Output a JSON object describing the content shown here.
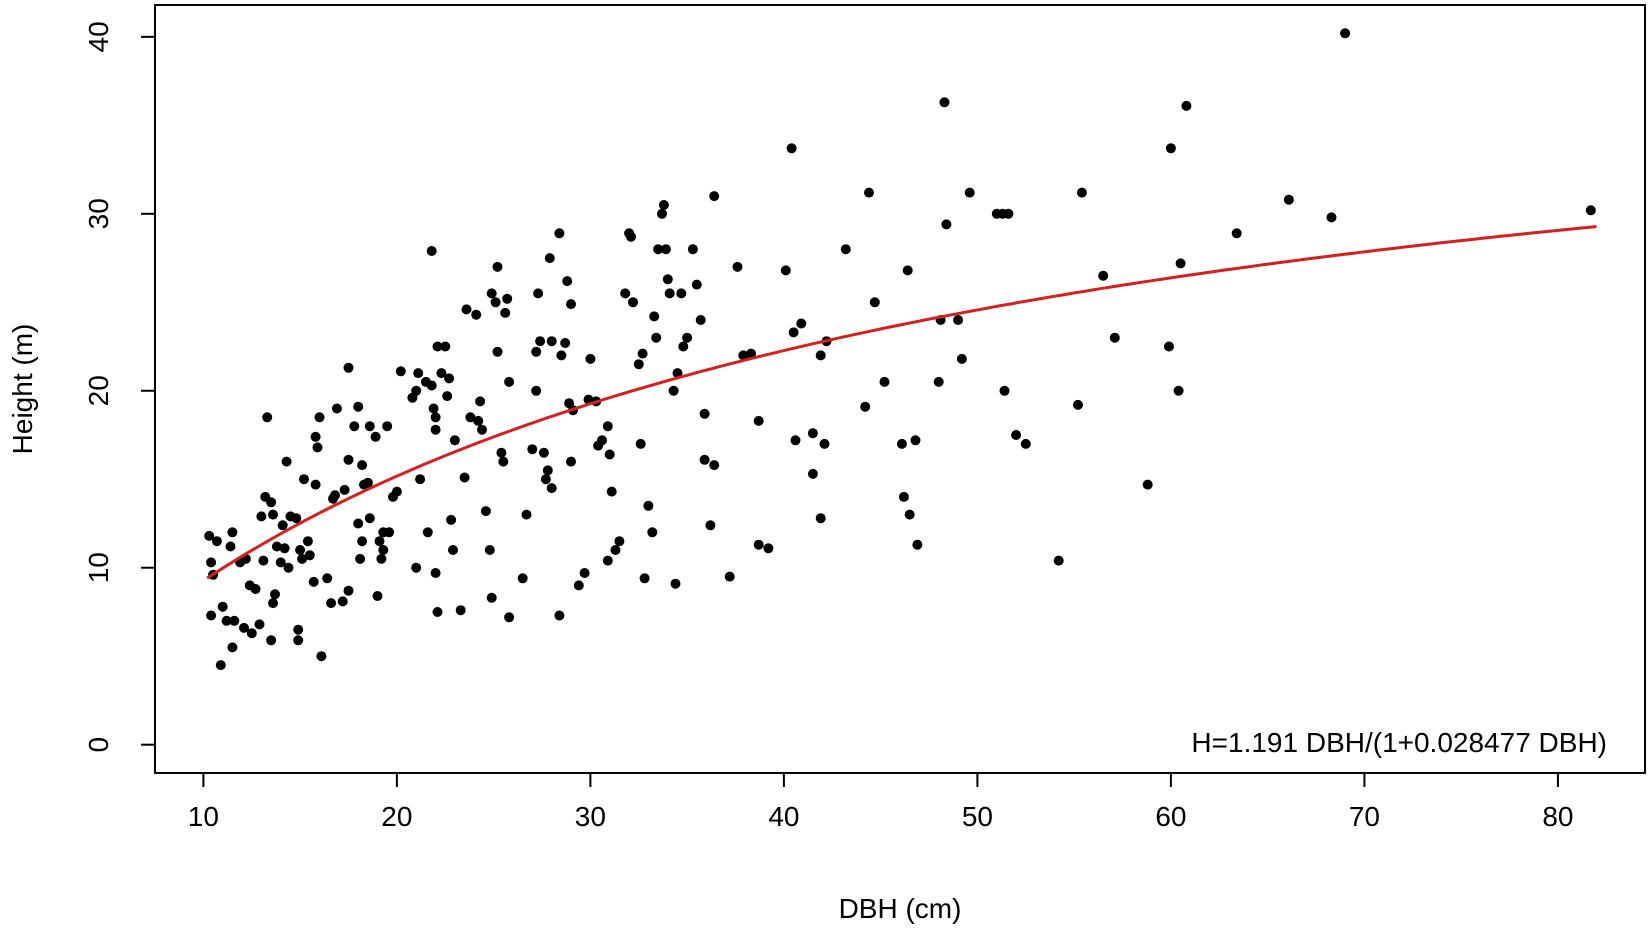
{
  "chart_data": {
    "type": "scatter",
    "title": "",
    "xlabel": "DBH (cm)",
    "ylabel": "Height (m)",
    "xlim": [
      7.5,
      84.5
    ],
    "ylim": [
      -1.6,
      41.8
    ],
    "xticks": [
      10,
      20,
      30,
      40,
      50,
      60,
      70,
      80
    ],
    "yticks": [
      0,
      10,
      20,
      30,
      40
    ],
    "grid": false,
    "annotation": "H=1.191 DBH/(1+0.028477 DBH)",
    "point_color": "#000000",
    "fit": {
      "formula": "H = a*DBH/(1+b*DBH)",
      "a": 1.191,
      "b": 0.028477,
      "x_range": [
        10.2,
        82.0
      ],
      "color": "#d61f1f"
    },
    "points": [
      [
        10.3,
        11.8
      ],
      [
        10.4,
        10.3
      ],
      [
        10.5,
        9.6
      ],
      [
        10.7,
        11.5
      ],
      [
        10.4,
        7.3
      ],
      [
        11.0,
        7.8
      ],
      [
        10.9,
        4.5
      ],
      [
        11.2,
        7.0
      ],
      [
        11.5,
        5.5
      ],
      [
        11.6,
        7.0
      ],
      [
        11.4,
        11.2
      ],
      [
        11.5,
        12.0
      ],
      [
        11.9,
        10.3
      ],
      [
        12.2,
        10.5
      ],
      [
        12.4,
        9.0
      ],
      [
        12.7,
        8.8
      ],
      [
        12.1,
        6.6
      ],
      [
        12.5,
        6.3
      ],
      [
        12.9,
        6.8
      ],
      [
        13.1,
        10.4
      ],
      [
        13.0,
        12.9
      ],
      [
        13.2,
        14.0
      ],
      [
        13.5,
        13.7
      ],
      [
        13.6,
        13.0
      ],
      [
        13.3,
        18.5
      ],
      [
        13.8,
        11.2
      ],
      [
        13.7,
        8.5
      ],
      [
        13.6,
        8.0
      ],
      [
        13.5,
        5.9
      ],
      [
        14.0,
        10.3
      ],
      [
        14.2,
        11.1
      ],
      [
        14.4,
        10.0
      ],
      [
        14.1,
        12.4
      ],
      [
        14.5,
        12.9
      ],
      [
        14.3,
        16.0
      ],
      [
        14.8,
        12.8
      ],
      [
        15.0,
        11.0
      ],
      [
        15.1,
        10.5
      ],
      [
        15.2,
        15.0
      ],
      [
        15.4,
        11.5
      ],
      [
        15.5,
        10.7
      ],
      [
        15.7,
        9.2
      ],
      [
        14.9,
        6.5
      ],
      [
        14.9,
        5.9
      ],
      [
        15.8,
        14.7
      ],
      [
        15.9,
        16.8
      ],
      [
        15.8,
        17.4
      ],
      [
        16.0,
        18.5
      ],
      [
        16.1,
        5.0
      ],
      [
        16.4,
        9.4
      ],
      [
        16.6,
        8.0
      ],
      [
        16.7,
        13.9
      ],
      [
        16.8,
        14.1
      ],
      [
        16.9,
        19.0
      ],
      [
        17.2,
        8.1
      ],
      [
        17.5,
        8.7
      ],
      [
        17.3,
        14.4
      ],
      [
        17.5,
        16.1
      ],
      [
        17.5,
        21.3
      ],
      [
        17.8,
        18.0
      ],
      [
        18.0,
        19.1
      ],
      [
        18.2,
        15.8
      ],
      [
        18.0,
        12.5
      ],
      [
        18.2,
        11.5
      ],
      [
        18.1,
        10.5
      ],
      [
        18.3,
        14.7
      ],
      [
        18.5,
        14.8
      ],
      [
        18.6,
        12.8
      ],
      [
        18.6,
        18.0
      ],
      [
        18.9,
        17.4
      ],
      [
        19.0,
        8.4
      ],
      [
        19.2,
        10.5
      ],
      [
        19.1,
        11.5
      ],
      [
        19.3,
        12.0
      ],
      [
        19.3,
        11.0
      ],
      [
        19.5,
        18.0
      ],
      [
        19.6,
        12.0
      ],
      [
        19.8,
        14.0
      ],
      [
        20.0,
        14.3
      ],
      [
        20.2,
        21.1
      ],
      [
        20.8,
        19.6
      ],
      [
        21.0,
        20.0
      ],
      [
        21.1,
        21.0
      ],
      [
        21.0,
        10.0
      ],
      [
        21.2,
        15.0
      ],
      [
        21.5,
        20.5
      ],
      [
        21.6,
        12.0
      ],
      [
        21.8,
        20.3
      ],
      [
        21.9,
        19.0
      ],
      [
        22.0,
        18.5
      ],
      [
        21.8,
        27.9
      ],
      [
        22.1,
        22.5
      ],
      [
        22.0,
        17.8
      ],
      [
        22.3,
        21.0
      ],
      [
        22.5,
        22.5
      ],
      [
        22.7,
        20.7
      ],
      [
        22.6,
        19.7
      ],
      [
        22.0,
        9.7
      ],
      [
        22.1,
        7.5
      ],
      [
        22.9,
        11.0
      ],
      [
        22.8,
        12.7
      ],
      [
        23.0,
        17.2
      ],
      [
        23.3,
        7.6
      ],
      [
        23.5,
        15.1
      ],
      [
        23.6,
        24.6
      ],
      [
        23.8,
        18.5
      ],
      [
        24.1,
        24.3
      ],
      [
        24.3,
        19.4
      ],
      [
        24.2,
        18.3
      ],
      [
        24.4,
        17.8
      ],
      [
        24.6,
        13.2
      ],
      [
        24.8,
        11.0
      ],
      [
        24.9,
        8.3
      ],
      [
        24.9,
        25.5
      ],
      [
        25.1,
        25.0
      ],
      [
        25.2,
        22.2
      ],
      [
        25.2,
        27.0
      ],
      [
        25.6,
        24.4
      ],
      [
        25.7,
        25.2
      ],
      [
        25.8,
        20.5
      ],
      [
        25.4,
        16.5
      ],
      [
        25.5,
        16.0
      ],
      [
        25.8,
        7.2
      ],
      [
        26.5,
        9.4
      ],
      [
        26.7,
        13.0
      ],
      [
        27.0,
        16.7
      ],
      [
        27.2,
        22.2
      ],
      [
        27.3,
        25.5
      ],
      [
        27.4,
        22.8
      ],
      [
        27.2,
        20.0
      ],
      [
        27.6,
        16.5
      ],
      [
        27.8,
        15.5
      ],
      [
        27.7,
        15.0
      ],
      [
        28.0,
        14.5
      ],
      [
        28.0,
        22.8
      ],
      [
        27.9,
        27.5
      ],
      [
        28.4,
        28.9
      ],
      [
        28.5,
        22.0
      ],
      [
        28.7,
        22.7
      ],
      [
        28.8,
        26.2
      ],
      [
        29.0,
        24.9
      ],
      [
        28.9,
        19.3
      ],
      [
        29.1,
        18.9
      ],
      [
        29.0,
        16.0
      ],
      [
        28.4,
        7.3
      ],
      [
        29.4,
        9.0
      ],
      [
        29.7,
        9.7
      ],
      [
        29.9,
        19.5
      ],
      [
        30.0,
        21.8
      ],
      [
        30.3,
        19.4
      ],
      [
        30.4,
        16.9
      ],
      [
        30.6,
        17.2
      ],
      [
        30.9,
        18.0
      ],
      [
        31.0,
        16.4
      ],
      [
        30.9,
        10.4
      ],
      [
        31.1,
        14.3
      ],
      [
        31.3,
        11.0
      ],
      [
        31.5,
        11.5
      ],
      [
        31.8,
        25.5
      ],
      [
        32.0,
        28.9
      ],
      [
        32.1,
        28.7
      ],
      [
        32.2,
        25.0
      ],
      [
        32.5,
        21.5
      ],
      [
        32.7,
        22.1
      ],
      [
        32.6,
        17.0
      ],
      [
        32.8,
        9.4
      ],
      [
        33.0,
        13.5
      ],
      [
        33.2,
        12.0
      ],
      [
        33.3,
        24.2
      ],
      [
        33.4,
        23.0
      ],
      [
        33.5,
        28.0
      ],
      [
        33.7,
        30.0
      ],
      [
        33.8,
        30.5
      ],
      [
        33.9,
        28.0
      ],
      [
        34.0,
        26.3
      ],
      [
        34.1,
        25.5
      ],
      [
        34.3,
        20.0
      ],
      [
        34.4,
        9.1
      ],
      [
        34.5,
        21.0
      ],
      [
        34.7,
        25.5
      ],
      [
        34.8,
        22.5
      ],
      [
        35.0,
        23.0
      ],
      [
        35.3,
        28.0
      ],
      [
        35.5,
        26.0
      ],
      [
        35.7,
        24.0
      ],
      [
        35.9,
        18.7
      ],
      [
        35.9,
        16.1
      ],
      [
        36.2,
        12.4
      ],
      [
        36.4,
        15.8
      ],
      [
        36.4,
        31.0
      ],
      [
        37.2,
        9.5
      ],
      [
        37.6,
        27.0
      ],
      [
        37.9,
        22.0
      ],
      [
        38.3,
        22.1
      ],
      [
        38.7,
        18.3
      ],
      [
        38.7,
        11.3
      ],
      [
        39.2,
        11.1
      ],
      [
        40.1,
        26.8
      ],
      [
        40.4,
        33.7
      ],
      [
        40.6,
        17.2
      ],
      [
        40.9,
        23.8
      ],
      [
        40.5,
        23.3
      ],
      [
        41.5,
        17.6
      ],
      [
        41.5,
        15.3
      ],
      [
        41.9,
        12.8
      ],
      [
        42.1,
        17.0
      ],
      [
        42.2,
        22.8
      ],
      [
        41.9,
        22.0
      ],
      [
        43.2,
        28.0
      ],
      [
        44.2,
        19.1
      ],
      [
        44.4,
        31.2
      ],
      [
        44.7,
        25.0
      ],
      [
        45.2,
        20.5
      ],
      [
        46.1,
        17.0
      ],
      [
        46.2,
        14.0
      ],
      [
        46.5,
        13.0
      ],
      [
        46.4,
        26.8
      ],
      [
        46.9,
        11.3
      ],
      [
        46.8,
        17.2
      ],
      [
        48.0,
        20.5
      ],
      [
        48.1,
        24.0
      ],
      [
        48.3,
        36.3
      ],
      [
        48.4,
        29.4
      ],
      [
        49.0,
        24.0
      ],
      [
        49.2,
        21.8
      ],
      [
        49.6,
        31.2
      ],
      [
        51.0,
        30.0
      ],
      [
        51.3,
        30.0
      ],
      [
        51.4,
        20.0
      ],
      [
        51.6,
        30.0
      ],
      [
        52.0,
        17.5
      ],
      [
        52.5,
        17.0
      ],
      [
        54.2,
        10.4
      ],
      [
        55.2,
        19.2
      ],
      [
        55.4,
        31.2
      ],
      [
        56.5,
        26.5
      ],
      [
        57.1,
        23.0
      ],
      [
        58.8,
        14.7
      ],
      [
        59.9,
        22.5
      ],
      [
        60.0,
        33.7
      ],
      [
        60.4,
        20.0
      ],
      [
        60.5,
        27.2
      ],
      [
        60.8,
        36.1
      ],
      [
        63.4,
        28.9
      ],
      [
        66.1,
        30.8
      ],
      [
        68.3,
        29.8
      ],
      [
        69.0,
        40.2
      ],
      [
        81.7,
        30.2
      ]
    ]
  }
}
